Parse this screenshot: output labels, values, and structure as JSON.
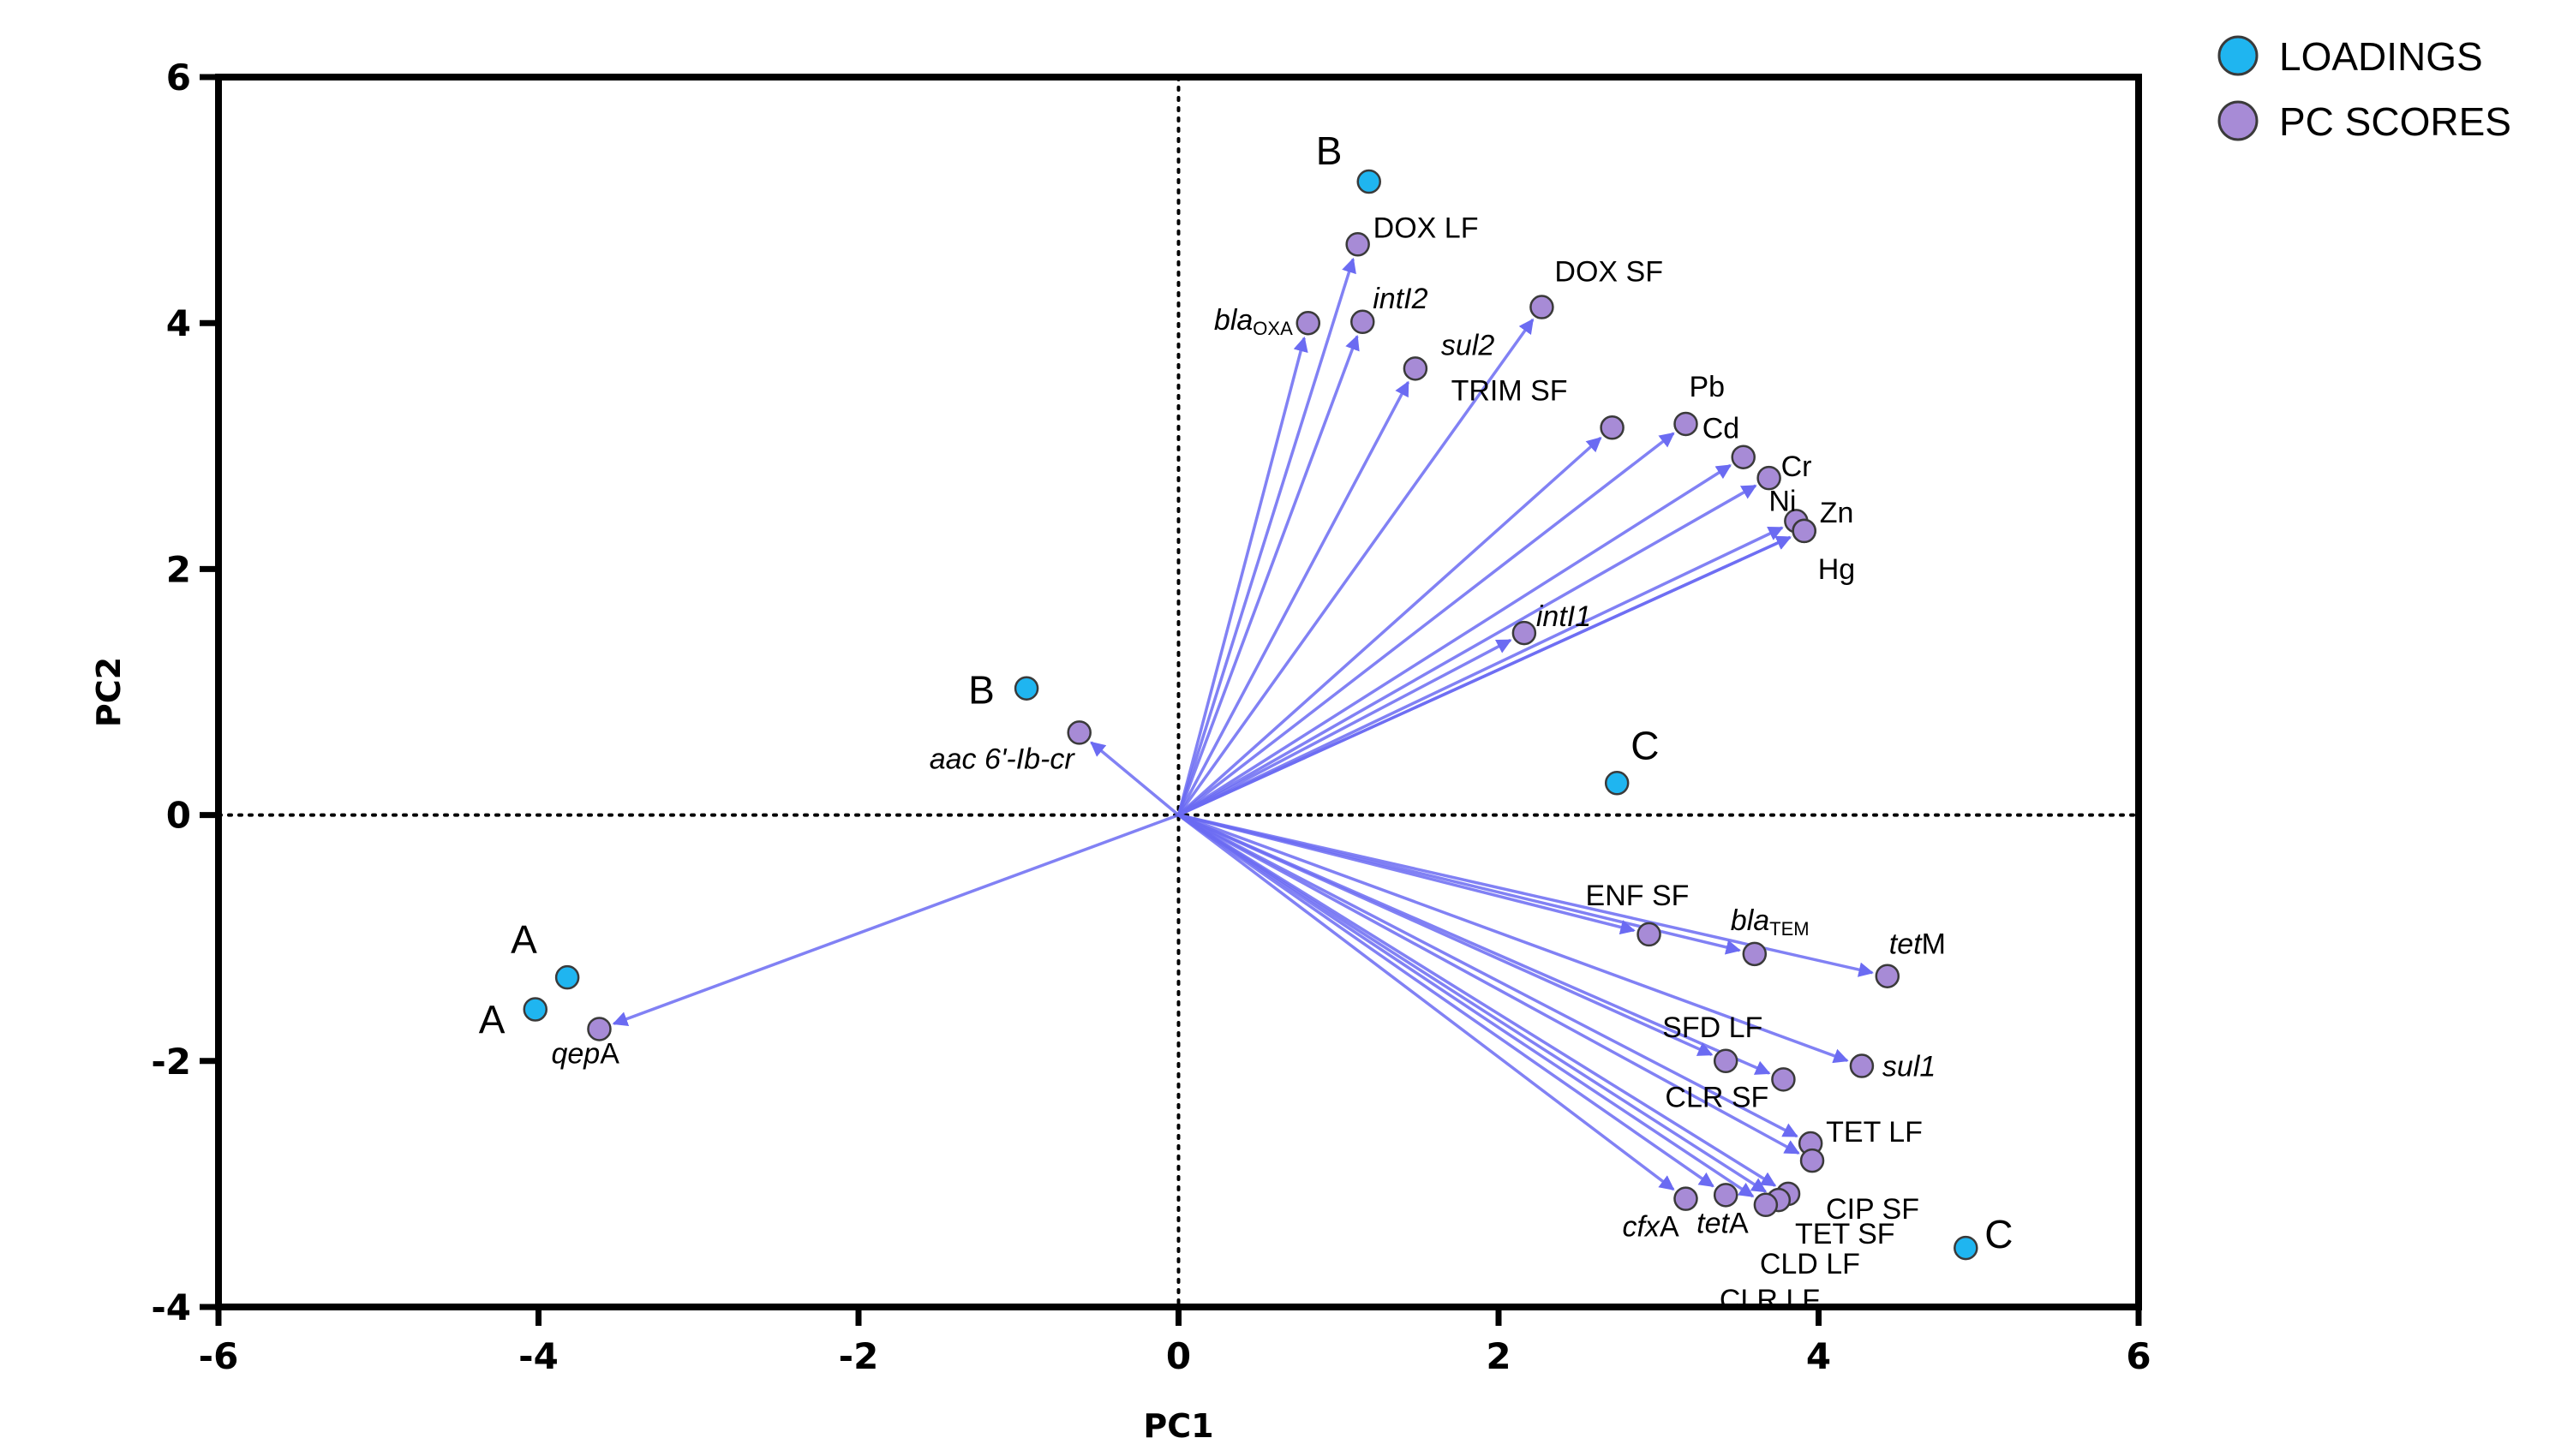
{
  "chart_data": {
    "type": "scatter",
    "xlabel": "PC1",
    "ylabel": "PC2",
    "xlim": [
      -6,
      6
    ],
    "ylim": [
      -4,
      6
    ],
    "xticks": [
      "-6",
      "-4",
      "-2",
      "0",
      "2",
      "4",
      "6"
    ],
    "yticks": [
      "-4",
      "-2",
      "0",
      "2",
      "4",
      "6"
    ],
    "grid": false,
    "reference_lines": [
      "x = 0 (dotted)",
      "y = 0 (dotted)"
    ],
    "legend": {
      "position": "top-right",
      "entries": [
        {
          "name": "LOADINGS",
          "color": "#1fb5f0"
        },
        {
          "name": "PC SCORES",
          "color": "#a78bd6"
        }
      ]
    },
    "arrow_color": "#6b6bf2",
    "series": [
      {
        "name": "LOADINGS",
        "color": "#1fb5f0",
        "points": [
          {
            "label": "A",
            "x": -3.82,
            "y": -1.32
          },
          {
            "label": "A",
            "x": -4.02,
            "y": -1.58
          },
          {
            "label": "B",
            "x": -0.95,
            "y": 1.03
          },
          {
            "label": "B",
            "x": 1.19,
            "y": 5.15
          },
          {
            "label": "C",
            "x": 2.74,
            "y": 0.26
          },
          {
            "label": "C",
            "x": 4.92,
            "y": -3.52
          }
        ]
      },
      {
        "name": "PC SCORES",
        "color": "#a78bd6",
        "points": [
          {
            "label": "DOX LF",
            "x": 1.12,
            "y": 4.64
          },
          {
            "label": "bla",
            "sub": "OXA",
            "x": 0.81,
            "y": 4.0
          },
          {
            "label": "intI2",
            "x": 1.15,
            "y": 4.01
          },
          {
            "label": "sul2",
            "x": 1.48,
            "y": 3.63
          },
          {
            "label": "DOX SF",
            "x": 2.27,
            "y": 4.13
          },
          {
            "label": "TRIM SF",
            "x": 2.71,
            "y": 3.15
          },
          {
            "label": "Pb",
            "x": 3.17,
            "y": 3.18
          },
          {
            "label": "Cd",
            "x": 3.53,
            "y": 2.91
          },
          {
            "label": "Cr",
            "x": 3.69,
            "y": 2.74
          },
          {
            "label": "Ni",
            "x": 3.86,
            "y": 2.39
          },
          {
            "label": "Zn",
            "x": 3.91,
            "y": 2.31
          },
          {
            "label": "Hg",
            "x": 3.91,
            "y": 2.31
          },
          {
            "label": "intI1",
            "x": 2.16,
            "y": 1.48
          },
          {
            "label": "aac 6'-Ib-cr",
            "x": -0.62,
            "y": 0.67
          },
          {
            "label": "qepA",
            "x": -3.62,
            "y": -1.74
          },
          {
            "label": "ENF SF",
            "x": 2.94,
            "y": -0.97
          },
          {
            "label": "bla",
            "sub": "TEM",
            "x": 3.6,
            "y": -1.13
          },
          {
            "label": "tetM",
            "x": 4.43,
            "y": -1.31
          },
          {
            "label": "SFD LF",
            "x": 3.42,
            "y": -2.0
          },
          {
            "label": "CLR SF",
            "x": 3.78,
            "y": -2.15
          },
          {
            "label": "sul1",
            "x": 4.27,
            "y": -2.04
          },
          {
            "label": "TET LF",
            "x": 3.95,
            "y": -2.67
          },
          {
            "label": "CIP SF",
            "x": 3.96,
            "y": -2.81
          },
          {
            "label": "TET SF",
            "x": 3.81,
            "y": -3.08
          },
          {
            "label": "CLD LF",
            "x": 3.75,
            "y": -3.13
          },
          {
            "label": "CLR LF",
            "x": 3.67,
            "y": -3.17
          },
          {
            "label": "tetA",
            "x": 3.42,
            "y": -3.09
          },
          {
            "label": "cfxA",
            "x": 3.17,
            "y": -3.12
          }
        ]
      }
    ]
  }
}
